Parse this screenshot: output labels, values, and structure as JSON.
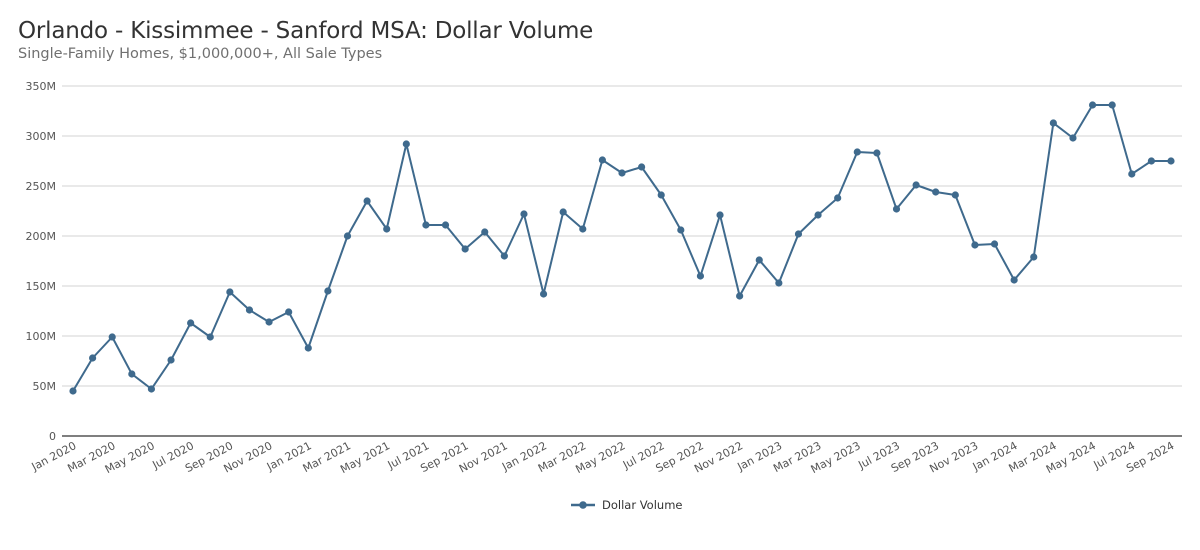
{
  "header": {
    "title": "Orlando - Kissimmee - Sanford MSA: Dollar Volume",
    "subtitle": "Single-Family Homes, $1,000,000+, All Sale Types"
  },
  "legend": {
    "label": "Dollar Volume"
  },
  "colors": {
    "series": "#3f6a8d",
    "grid": "#d3d3d3",
    "axis": "#333333"
  },
  "chart_data": {
    "type": "line",
    "title": "Orlando - Kissimmee - Sanford MSA: Dollar Volume",
    "subtitle": "Single-Family Homes, $1,000,000+, All Sale Types",
    "xlabel": "",
    "ylabel": "",
    "ylim": [
      0,
      350
    ],
    "y_unit": "M",
    "yticks": [
      "0",
      "50M",
      "100M",
      "150M",
      "200M",
      "250M",
      "300M",
      "350M"
    ],
    "xtick_labels": [
      "Jan 2020",
      "Mar 2020",
      "May 2020",
      "Jul 2020",
      "Sep 2020",
      "Nov 2020",
      "Jan 2021",
      "Mar 2021",
      "May 2021",
      "Jul 2021",
      "Sep 2021",
      "Nov 2021",
      "Jan 2022",
      "Mar 2022",
      "May 2022",
      "Jul 2022",
      "Sep 2022",
      "Nov 2022",
      "Jan 2023",
      "Mar 2023",
      "May 2023",
      "Jul 2023",
      "Sep 2023",
      "Nov 2023",
      "Jan 2024",
      "Mar 2024",
      "May 2024",
      "Jul 2024",
      "Sep 2024"
    ],
    "grid": true,
    "legend_position": "bottom",
    "x": [
      "Jan 2020",
      "Feb 2020",
      "Mar 2020",
      "Apr 2020",
      "May 2020",
      "Jun 2020",
      "Jul 2020",
      "Aug 2020",
      "Sep 2020",
      "Oct 2020",
      "Nov 2020",
      "Dec 2020",
      "Jan 2021",
      "Feb 2021",
      "Mar 2021",
      "Apr 2021",
      "May 2021",
      "Jun 2021",
      "Jul 2021",
      "Aug 2021",
      "Sep 2021",
      "Oct 2021",
      "Nov 2021",
      "Dec 2021",
      "Jan 2022",
      "Feb 2022",
      "Mar 2022",
      "Apr 2022",
      "May 2022",
      "Jun 2022",
      "Jul 2022",
      "Aug 2022",
      "Sep 2022",
      "Oct 2022",
      "Nov 2022",
      "Dec 2022",
      "Jan 2023",
      "Feb 2023",
      "Mar 2023",
      "Apr 2023",
      "May 2023",
      "Jun 2023",
      "Jul 2023",
      "Aug 2023",
      "Sep 2023",
      "Oct 2023",
      "Nov 2023",
      "Dec 2023",
      "Jan 2024",
      "Feb 2024",
      "Mar 2024",
      "Apr 2024",
      "May 2024",
      "Jun 2024",
      "Jul 2024",
      "Aug 2024",
      "Sep 2024"
    ],
    "series": [
      {
        "name": "Dollar Volume",
        "values": [
          45,
          78,
          99,
          62,
          47,
          76,
          113,
          99,
          144,
          126,
          114,
          124,
          88,
          145,
          200,
          235,
          207,
          292,
          211,
          211,
          187,
          204,
          180,
          222,
          142,
          224,
          207,
          276,
          263,
          269,
          241,
          206,
          160,
          221,
          140,
          176,
          153,
          202,
          221,
          238,
          284,
          283,
          227,
          251,
          244,
          241,
          191,
          192,
          156,
          179,
          313,
          298,
          331,
          331,
          262,
          275,
          275
        ]
      }
    ]
  }
}
